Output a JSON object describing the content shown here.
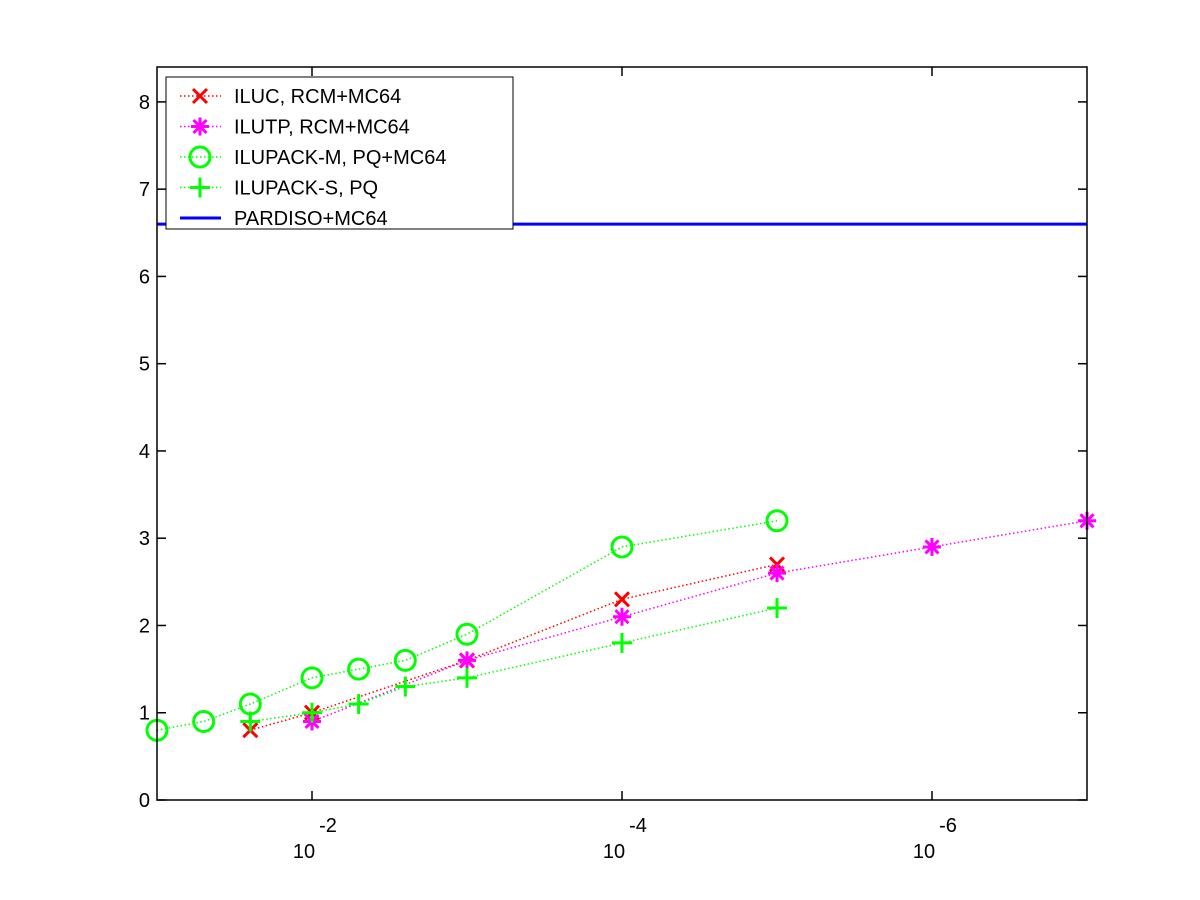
{
  "chart_data": {
    "type": "line",
    "title": "",
    "xlabel": "",
    "ylabel": "",
    "x_scale": "log",
    "x_reversed": true,
    "xlim": [
      0.1,
      1e-07
    ],
    "ylim": [
      0,
      8.4
    ],
    "grid": false,
    "legend_position": "top-left",
    "x_ticks": [
      {
        "value": 0.01,
        "base": "10",
        "exponent": "-2"
      },
      {
        "value": 0.0001,
        "base": "10",
        "exponent": "-4"
      },
      {
        "value": 1e-06,
        "base": "10",
        "exponent": "-6"
      }
    ],
    "y_ticks": [
      {
        "value": 0,
        "label": "0"
      },
      {
        "value": 1,
        "label": "1"
      },
      {
        "value": 2,
        "label": "2"
      },
      {
        "value": 3,
        "label": "3"
      },
      {
        "value": 4,
        "label": "4"
      },
      {
        "value": 5,
        "label": "5"
      },
      {
        "value": 6,
        "label": "6"
      },
      {
        "value": 7,
        "label": "7"
      },
      {
        "value": 8,
        "label": "8"
      }
    ],
    "series": [
      {
        "name": "ILUC, RCM+MC64",
        "color": "#ff0000",
        "marker": "x",
        "line_style": "dotted",
        "x": [
          0.025,
          0.01,
          0.001,
          0.0001,
          1e-05
        ],
        "y": [
          0.8,
          1.0,
          1.6,
          2.3,
          2.7
        ]
      },
      {
        "name": "ILUTP, RCM+MC64",
        "color": "#ff00ff",
        "marker": "asterisk",
        "line_style": "dotted",
        "x": [
          0.01,
          0.001,
          0.0001,
          1e-05,
          1e-06,
          1e-07
        ],
        "y": [
          0.9,
          1.6,
          2.1,
          2.6,
          2.9,
          3.2
        ]
      },
      {
        "name": "ILUPACK-M, PQ+MC64",
        "color": "#00ff00",
        "marker": "circle",
        "line_style": "dotted",
        "x": [
          0.1,
          0.05,
          0.025,
          0.01,
          0.005,
          0.0025,
          0.001,
          0.0001,
          1e-05
        ],
        "y": [
          0.8,
          0.9,
          1.1,
          1.4,
          1.5,
          1.6,
          1.9,
          2.9,
          3.2
        ]
      },
      {
        "name": "ILUPACK-S, PQ",
        "color": "#00ff00",
        "marker": "plus",
        "line_style": "dotted",
        "x": [
          0.025,
          0.01,
          0.005,
          0.0025,
          0.001,
          0.0001,
          1e-05
        ],
        "y": [
          0.9,
          1.0,
          1.1,
          1.3,
          1.4,
          1.8,
          2.2
        ]
      },
      {
        "name": "PARDISO+MC64",
        "color": "#0000ff",
        "marker": "none",
        "line_style": "solid",
        "x": [
          0.1,
          1e-07
        ],
        "y": [
          6.6,
          6.6
        ]
      }
    ]
  }
}
